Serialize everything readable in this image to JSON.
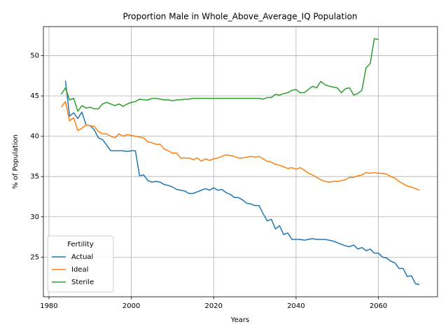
{
  "chart_data": {
    "type": "line",
    "title": "Proportion Male in Whole_Above_Average_IQ Population",
    "x_label": "Years",
    "y_label": "% of Population",
    "x": [
      1983,
      1984,
      1985,
      1986,
      1987,
      1988,
      1989,
      1990,
      1991,
      1992,
      1993,
      1994,
      1995,
      1996,
      1997,
      1998,
      1999,
      2000,
      2001,
      2002,
      2003,
      2004,
      2005,
      2006,
      2007,
      2008,
      2009,
      2010,
      2011,
      2012,
      2013,
      2014,
      2015,
      2016,
      2017,
      2018,
      2019,
      2020,
      2021,
      2022,
      2023,
      2024,
      2025,
      2026,
      2027,
      2028,
      2029,
      2030,
      2031,
      2032,
      2033,
      2034,
      2035,
      2036,
      2037,
      2038,
      2039,
      2040,
      2041,
      2042,
      2043,
      2044,
      2045,
      2046,
      2047,
      2048,
      2049,
      2050,
      2051,
      2052,
      2053,
      2054,
      2055,
      2056,
      2057,
      2058,
      2059,
      2060,
      2061,
      2062,
      2063,
      2064,
      2065,
      2066,
      2067,
      2068,
      2069,
      2070
    ],
    "series": [
      {
        "name": "Actual",
        "color": "#1f77b4",
        "values": [
          null,
          46.9,
          42.5,
          42.9,
          42.2,
          43.0,
          41.4,
          41.3,
          40.8,
          39.8,
          39.6,
          38.9,
          38.2,
          38.2,
          38.2,
          38.2,
          38.1,
          38.2,
          38.2,
          35.1,
          35.2,
          34.5,
          34.3,
          34.4,
          34.3,
          34.0,
          33.9,
          33.7,
          33.4,
          33.3,
          33.2,
          32.9,
          32.9,
          33.1,
          33.3,
          33.5,
          33.3,
          33.6,
          33.3,
          33.4,
          33.0,
          32.8,
          32.4,
          32.4,
          32.1,
          31.7,
          31.6,
          31.4,
          31.4,
          30.4,
          29.5,
          29.7,
          28.5,
          28.9,
          27.8,
          28.0,
          27.2,
          27.2,
          27.2,
          27.1,
          27.2,
          27.3,
          27.2,
          27.2,
          27.2,
          27.1,
          27.0,
          26.8,
          26.6,
          26.4,
          26.3,
          26.5,
          26.0,
          26.2,
          25.8,
          26.0,
          25.5,
          25.5,
          25.0,
          24.9,
          24.5,
          24.3,
          23.6,
          23.6,
          22.6,
          22.7,
          21.7,
          21.6
        ]
      },
      {
        "name": "Ideal",
        "color": "#ff7f0e",
        "values": [
          43.6,
          44.3,
          41.9,
          42.3,
          40.7,
          41.0,
          41.4,
          41.3,
          41.2,
          40.6,
          40.3,
          40.3,
          40.0,
          39.8,
          40.3,
          40.0,
          40.2,
          40.1,
          40.0,
          39.9,
          39.8,
          39.3,
          39.2,
          39.0,
          39.0,
          38.4,
          38.2,
          37.9,
          37.9,
          37.3,
          37.3,
          37.3,
          37.1,
          37.3,
          36.9,
          37.2,
          37.0,
          37.2,
          37.3,
          37.5,
          37.7,
          37.6,
          37.5,
          37.3,
          37.3,
          37.4,
          37.5,
          37.4,
          37.5,
          37.2,
          36.9,
          36.8,
          36.5,
          36.4,
          36.2,
          36.0,
          36.1,
          35.9,
          36.1,
          35.8,
          35.4,
          35.2,
          34.9,
          34.6,
          34.4,
          34.3,
          34.4,
          34.4,
          34.5,
          34.6,
          34.9,
          34.9,
          35.1,
          35.2,
          35.5,
          35.4,
          35.5,
          35.4,
          35.4,
          35.3,
          35.0,
          34.8,
          34.4,
          34.1,
          33.8,
          33.7,
          33.5,
          33.3
        ]
      },
      {
        "name": "Sterile",
        "color": "#2ca02c",
        "values": [
          45.2,
          46.0,
          44.5,
          44.7,
          43.1,
          43.8,
          43.5,
          43.6,
          43.4,
          43.4,
          44.0,
          44.2,
          44.0,
          43.8,
          44.0,
          43.7,
          44.0,
          44.2,
          44.3,
          44.6,
          44.5,
          44.5,
          44.7,
          44.7,
          44.6,
          44.5,
          44.5,
          44.4,
          44.5,
          44.5,
          44.6,
          44.6,
          44.7,
          44.7,
          44.7,
          44.7,
          44.7,
          44.7,
          44.7,
          44.7,
          44.7,
          44.7,
          44.7,
          44.7,
          44.7,
          44.7,
          44.7,
          44.7,
          44.7,
          44.6,
          44.8,
          44.8,
          45.2,
          45.1,
          45.3,
          45.4,
          45.7,
          45.8,
          45.4,
          45.4,
          45.8,
          46.2,
          46.0,
          46.8,
          46.4,
          46.2,
          46.1,
          46.0,
          45.4,
          45.9,
          46.0,
          45.1,
          45.3,
          45.7,
          48.5,
          49.0,
          52.1,
          52.0,
          null,
          null,
          null,
          null,
          null,
          null,
          null,
          null,
          null,
          null
        ]
      }
    ],
    "xlim": [
      1978.65,
      2074.35
    ],
    "xticks": [
      1980,
      2000,
      2020,
      2040,
      2060
    ],
    "ylim": [
      20.08,
      53.6
    ],
    "yticks": [
      25,
      30,
      35,
      40,
      45,
      50
    ],
    "grid": true,
    "legend_title": "Fertility",
    "legend_position": "lower left"
  }
}
